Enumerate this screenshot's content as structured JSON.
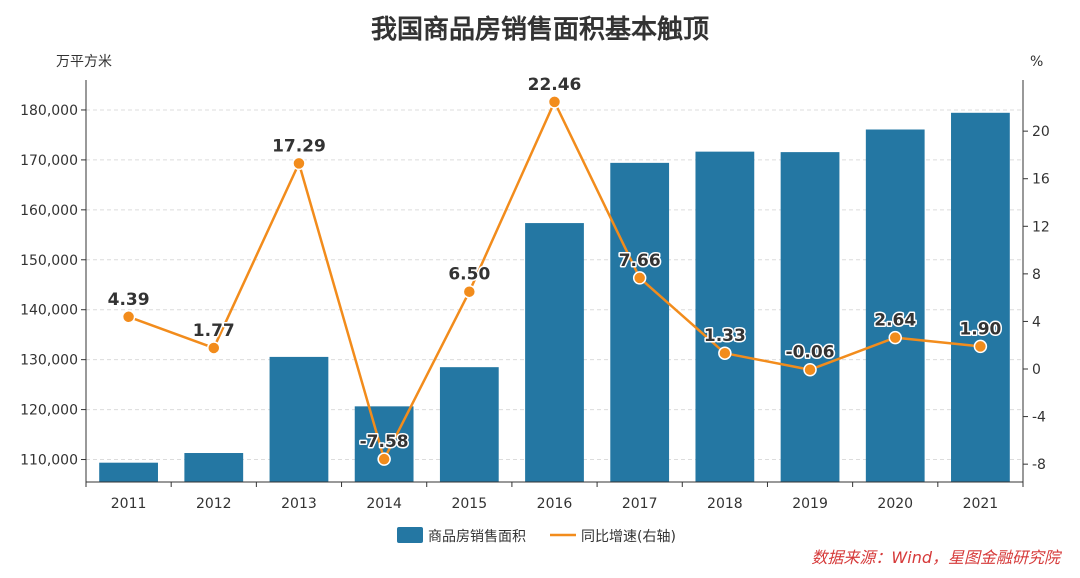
{
  "chart_data": {
    "type": "bar",
    "title": "我国商品房销售面积基本触顶",
    "categories": [
      "2011",
      "2012",
      "2013",
      "2014",
      "2015",
      "2016",
      "2017",
      "2018",
      "2019",
      "2020",
      "2021"
    ],
    "series": [
      {
        "name": "商品房销售面积",
        "type": "bar",
        "axis": "left",
        "values": [
          109367,
          111304,
          130551,
          120649,
          128495,
          157349,
          169408,
          171654,
          171558,
          176086,
          179433
        ]
      },
      {
        "name": "同比增速(右轴)",
        "type": "line",
        "axis": "right",
        "values": [
          4.39,
          1.77,
          17.29,
          -7.58,
          6.5,
          22.46,
          7.66,
          1.33,
          -0.06,
          2.64,
          1.9
        ],
        "labels": [
          "4.39",
          "1.77",
          "17.29",
          "-7.58",
          "6.50",
          "22.46",
          "7.66",
          "1.33",
          "-0.06",
          "2.64",
          "1.90"
        ]
      }
    ],
    "left_axis": {
      "unit": "万平方米",
      "ylim": [
        105500,
        186000
      ],
      "ticks": [
        110000,
        120000,
        130000,
        140000,
        150000,
        160000,
        170000,
        180000
      ],
      "tick_labels": [
        "110,000",
        "120,000",
        "130,000",
        "140,000",
        "150,000",
        "160,000",
        "170,000",
        "180,000"
      ]
    },
    "right_axis": {
      "unit": "%",
      "ylim": [
        -9.5,
        24.3
      ],
      "ticks": [
        -8,
        -4,
        0,
        4,
        8,
        12,
        16,
        20
      ],
      "tick_labels": [
        "-8",
        "-4",
        "0",
        "4",
        "8",
        "12",
        "16",
        "20"
      ]
    },
    "grid": true,
    "legend_position": "bottom",
    "colors": {
      "bar": "#2477a3",
      "line": "#f28c1c",
      "grid": "#dcdcdc",
      "source": "#d63a3a"
    },
    "source": "数据来源：Wind，星图金融研究院"
  }
}
